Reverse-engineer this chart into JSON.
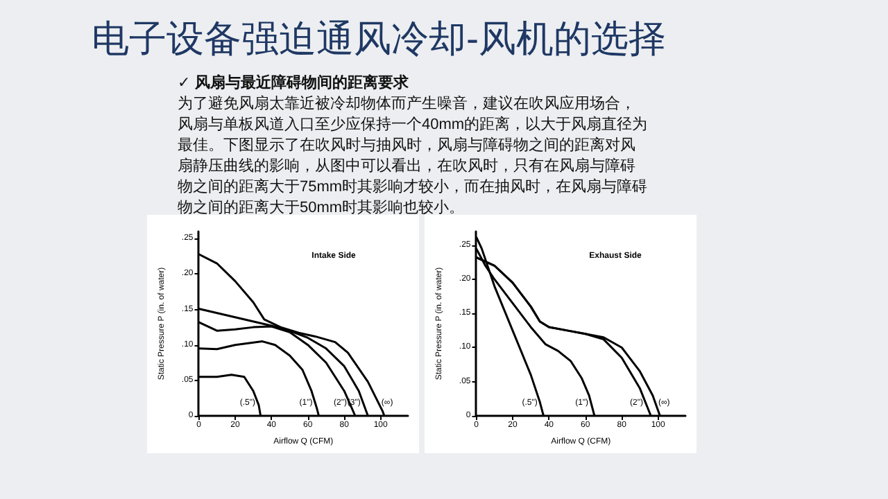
{
  "chart_data": [
    {
      "type": "other",
      "title": "电子设备强迫通风冷却-风机的选择",
      "subtitle": "✓ 风扇与最近障碍物间的距离要求",
      "annotations": [
        "为了避免风扇太靠近被冷却物体而产生噪音，建议在吹风应用场合，",
        "风扇与单板风道入口至少应保持一个40mm的距离，以大于风扇直径为",
        "最佳。下图显示了在吹风时与抽风时，风扇与障碍物之间的距离对风",
        "扇静压曲线的影响，从图中可以看出，在吹风时，只有在风扇与障碍",
        "物之间的距离大于75mm时其影响才较小，而在抽风时，在风扇与障碍",
        "物之间的距离大于50mm时其影响也较小。"
      ]
    },
    {
      "type": "line",
      "title": "Intake Side",
      "xlabel": "Airflow Q (CFM)",
      "ylabel": "Static Pressure P (in. of water)",
      "xlim": [
        0,
        115
      ],
      "xticks": [
        0,
        20,
        40,
        60,
        80,
        100
      ],
      "ylim": [
        0,
        0.26
      ],
      "yticks": [
        0,
        {
          "value": 0.05,
          "label": ".05"
        },
        {
          "value": 0.1,
          "label": ".10"
        },
        {
          "value": 0.15,
          "label": ".15"
        },
        {
          "value": 0.2,
          "label": ".20"
        },
        {
          "value": 0.25,
          "label": ".25"
        }
      ],
      "series": [
        {
          "name": "(.5\")",
          "color": "#000000",
          "x": [
            0,
            10,
            18,
            25,
            30,
            33,
            34
          ],
          "values": [
            0.055,
            0.055,
            0.058,
            0.055,
            0.035,
            0.015,
            0
          ]
        },
        {
          "name": "(1\")",
          "color": "#000000",
          "x": [
            0,
            10,
            20,
            35,
            42,
            50,
            57,
            62,
            65,
            66
          ],
          "values": [
            0.095,
            0.094,
            0.1,
            0.105,
            0.1,
            0.085,
            0.065,
            0.035,
            0.01,
            0
          ]
        },
        {
          "name": "(2\")",
          "color": "#000000",
          "x": [
            0,
            10,
            20,
            30,
            40,
            50,
            60,
            70,
            80,
            86
          ],
          "values": [
            0.132,
            0.12,
            0.122,
            0.125,
            0.126,
            0.118,
            0.1,
            0.075,
            0.035,
            0
          ]
        },
        {
          "name": "(3\")",
          "color": "#000000",
          "x": [
            0,
            40,
            50,
            60,
            70,
            80,
            88,
            93
          ],
          "values": [
            0.151,
            0.127,
            0.12,
            0.11,
            0.095,
            0.07,
            0.035,
            0
          ]
        },
        {
          "name": "(∞)",
          "color": "#000000",
          "x": [
            0,
            10,
            20,
            30,
            36,
            45,
            55,
            64,
            75,
            82,
            93,
            101,
            102
          ],
          "values": [
            0.228,
            0.215,
            0.19,
            0.16,
            0.136,
            0.125,
            0.117,
            0.112,
            0.104,
            0.089,
            0.048,
            0.007,
            0
          ]
        }
      ]
    },
    {
      "type": "line",
      "title": "Exhaust Side",
      "xlabel": "Airflow Q (CFM)",
      "ylabel": "Static Pressure P (in. of water)",
      "xlim": [
        0,
        115
      ],
      "xticks": [
        0,
        20,
        40,
        60,
        80,
        100
      ],
      "ylim": [
        0,
        0.27
      ],
      "yticks": [
        0,
        {
          "value": 0.05,
          "label": ".05"
        },
        {
          "value": 0.1,
          "label": ".10"
        },
        {
          "value": 0.15,
          "label": ".15"
        },
        {
          "value": 0.2,
          "label": ".20"
        },
        {
          "value": 0.25,
          "label": ".25"
        }
      ],
      "series": [
        {
          "name": "(.5\")",
          "color": "#000000",
          "x": [
            0,
            3,
            10,
            20,
            30,
            35,
            37
          ],
          "values": [
            0.262,
            0.245,
            0.19,
            0.125,
            0.06,
            0.02,
            0
          ]
        },
        {
          "name": "(1\")",
          "color": "#000000",
          "x": [
            0,
            5,
            10,
            20,
            30,
            38,
            45,
            52,
            58,
            62,
            65
          ],
          "values": [
            0.245,
            0.22,
            0.2,
            0.165,
            0.13,
            0.105,
            0.095,
            0.08,
            0.055,
            0.03,
            0
          ]
        },
        {
          "name": "(2\")",
          "color": "#000000",
          "x": [
            0,
            10,
            20,
            30,
            35,
            40,
            50,
            60,
            70,
            80,
            90,
            96
          ],
          "values": [
            0.232,
            0.22,
            0.195,
            0.16,
            0.138,
            0.13,
            0.125,
            0.12,
            0.112,
            0.085,
            0.04,
            0
          ]
        },
        {
          "name": "(∞)",
          "color": "#000000",
          "x": [
            0,
            10,
            20,
            30,
            35,
            40,
            50,
            60,
            70,
            80,
            90,
            97,
            101
          ],
          "values": [
            0.232,
            0.22,
            0.195,
            0.16,
            0.138,
            0.13,
            0.125,
            0.12,
            0.115,
            0.1,
            0.065,
            0.03,
            0
          ]
        }
      ]
    }
  ]
}
